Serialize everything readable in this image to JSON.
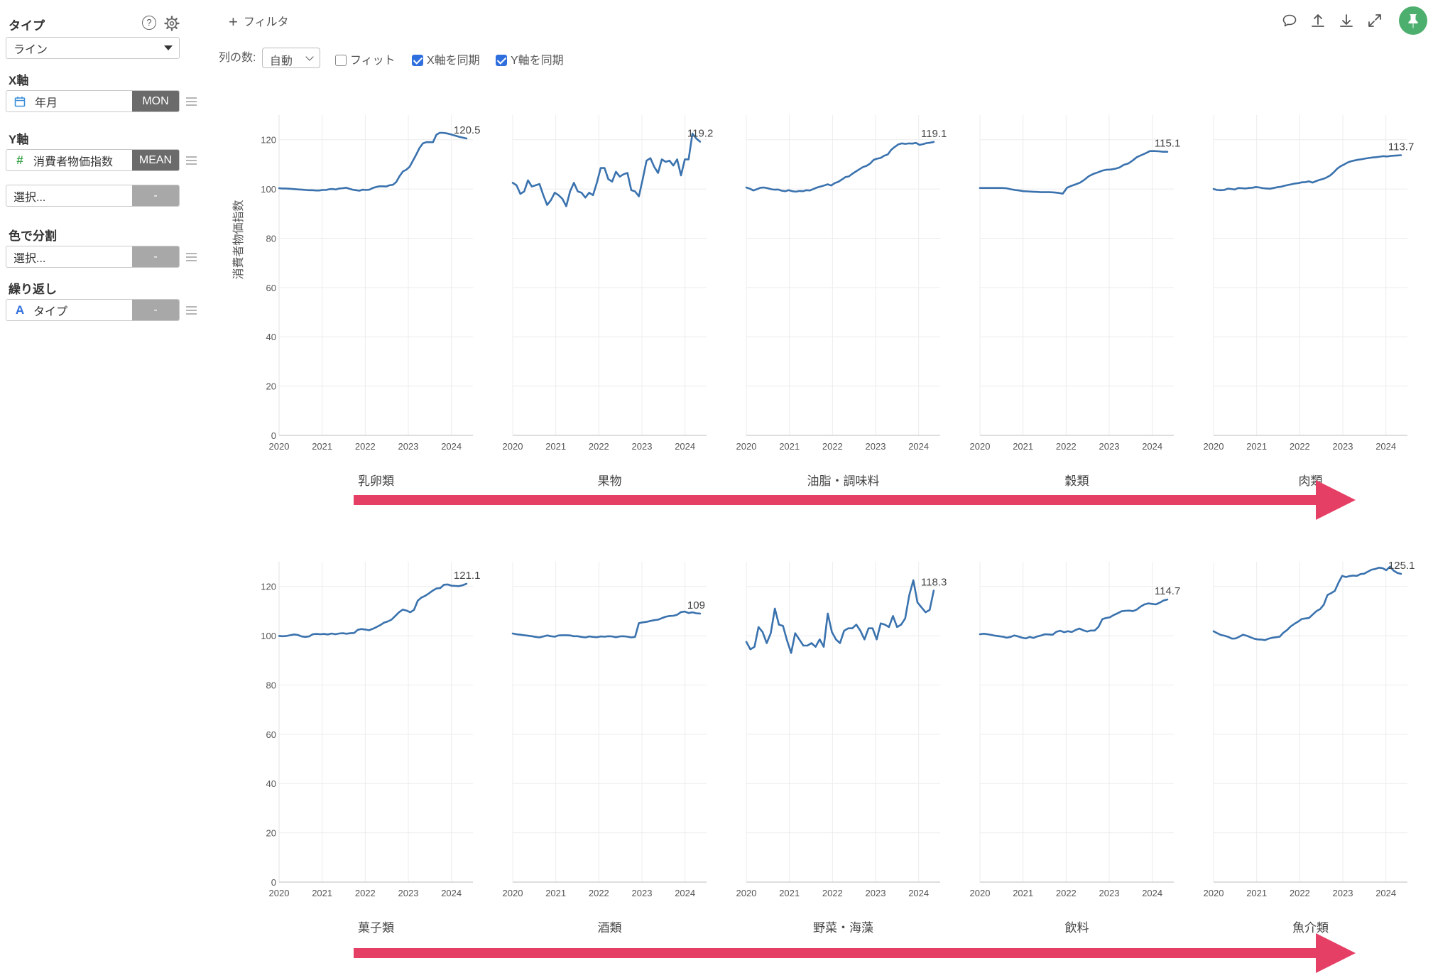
{
  "sidebar": {
    "type_label": "タイプ",
    "type_value": "ライン",
    "x_label": "X軸",
    "x_field": "年月",
    "x_agg": "MON",
    "y_label": "Y軸",
    "y_field": "消費者物価指数",
    "y_agg": "MEAN",
    "y_extra_placeholder": "選択...",
    "y_extra_agg": "-",
    "color_label": "色で分割",
    "color_placeholder": "選択...",
    "color_agg": "-",
    "repeat_label": "繰り返し",
    "repeat_field": "タイプ",
    "repeat_agg": "-",
    "help_glyph": "?",
    "field_type_glyphs": {
      "number": "#",
      "text": "A"
    }
  },
  "toolbar": {
    "filter_label": "フィルタ",
    "cols_label": "列の数:",
    "cols_value": "自動",
    "fit_label": "フィット",
    "fit_checked": false,
    "sync_x_label": "X軸を同期",
    "sync_x_checked": true,
    "sync_y_label": "Y軸を同期",
    "sync_y_checked": true,
    "icons": [
      "comment-icon",
      "upload-icon",
      "download-icon",
      "expand-icon",
      "pin-icon"
    ]
  },
  "colors": {
    "line": "#3a72ae",
    "arrow": "#e63f66",
    "pin": "#4caf6d"
  },
  "chart_data": {
    "type": "line",
    "ylabel": "消費者物価指数",
    "ylim": [
      0,
      130
    ],
    "yticks": [
      0,
      20,
      40,
      60,
      80,
      100,
      120
    ],
    "xlim": [
      2020,
      2024.5
    ],
    "xticks": [
      2020,
      2021,
      2022,
      2023,
      2024
    ],
    "grid": true,
    "facets": [
      {
        "label": "乳卵類",
        "end_label": "120.5",
        "values": [
          100.3,
          100.2,
          100.2,
          100.1,
          100,
          99.9,
          99.8,
          99.7,
          99.6,
          99.5,
          99.5,
          99.4,
          99.4,
          99.6,
          99.6,
          99.9,
          100,
          99.8,
          100.2,
          100.3,
          100.5,
          100.1,
          99.7,
          99.5,
          99.3,
          99.7,
          99.6,
          99.7,
          100.4,
          100.8,
          101.1,
          101.1,
          101,
          101.5,
          101.7,
          102.8,
          105.2,
          107.1,
          107.8,
          109,
          111.5,
          114,
          116.7,
          118.5,
          119,
          119,
          119,
          122,
          122.8,
          122.8,
          122.6,
          122.3,
          121.9,
          121.5,
          121.1,
          120.8,
          120.5
        ]
      },
      {
        "label": "果物",
        "end_label": "119.2",
        "values": [
          102.5,
          101.5,
          98,
          99,
          103.5,
          101,
          101.5,
          102,
          97.5,
          93.5,
          95.5,
          98.5,
          97.5,
          96,
          93,
          99,
          102.5,
          99,
          98.5,
          96.5,
          98.5,
          97.5,
          102.5,
          108.5,
          108.5,
          104,
          103,
          107,
          105,
          106,
          106.5,
          99.5,
          99,
          97,
          104,
          111.5,
          112.5,
          109,
          106.5,
          112,
          111,
          111.5,
          109.5,
          112,
          105.5,
          112,
          112,
          122.5,
          120.5,
          119.2
        ]
      },
      {
        "label": "油脂・調味料",
        "end_label": "119.1",
        "values": [
          100.6,
          100.1,
          99.4,
          99.9,
          100.5,
          100.6,
          100.3,
          99.9,
          99.7,
          99.8,
          99.3,
          99.1,
          99.5,
          99.1,
          98.9,
          99.2,
          99.1,
          99.5,
          99.4,
          100,
          100.6,
          101,
          101.4,
          101.9,
          101.4,
          102.4,
          102.9,
          103.8,
          104.8,
          105.1,
          106.2,
          107.1,
          108,
          108.9,
          109.4,
          110.3,
          111.8,
          112.3,
          112.6,
          113.5,
          114,
          115.9,
          117.1,
          118.1,
          118.5,
          118.3,
          118.5,
          118.4,
          118.7,
          117.9,
          118.2,
          118.6,
          118.8,
          119.1
        ]
      },
      {
        "label": "穀類",
        "end_label": "115.1",
        "values": [
          100.4,
          100.4,
          100.4,
          100.4,
          100.4,
          100.4,
          100.3,
          99.9,
          99.6,
          99.4,
          99.1,
          99,
          98.9,
          98.8,
          98.7,
          98.7,
          98.7,
          98.6,
          98.4,
          98.1,
          100.5,
          101.3,
          101.9,
          102.6,
          103.8,
          105.2,
          106.1,
          106.7,
          107.4,
          107.8,
          107.9,
          108.2,
          108.7,
          109.8,
          110.3,
          111.5,
          112.9,
          113.7,
          114.5,
          115.4,
          115.4,
          115.3,
          115.1,
          115.1
        ]
      },
      {
        "label": "肉類",
        "end_label": "113.7",
        "values": [
          100,
          99.6,
          99.5,
          99.6,
          100.1,
          100,
          99.8,
          100.4,
          100.3,
          100.2,
          100.4,
          100.5,
          100.8,
          100.6,
          100.3,
          100.2,
          100.1,
          100.4,
          100.7,
          100.9,
          101.3,
          101.6,
          101.9,
          102.2,
          102.4,
          102.7,
          102.8,
          103.1,
          102.6,
          103.2,
          103.7,
          104.1,
          104.7,
          105.5,
          106.8,
          108.3,
          109.3,
          110,
          110.8,
          111.3,
          111.6,
          111.9,
          112.1,
          112.4,
          112.6,
          112.8,
          112.9,
          113.1,
          113.3,
          113.2,
          113.4,
          113.5,
          113.6,
          113.7
        ]
      },
      {
        "label": "菓子類",
        "end_label": "121.1",
        "values": [
          99.9,
          99.8,
          99.9,
          100.2,
          100.5,
          100.3,
          99.7,
          99.5,
          99.7,
          100.6,
          100.7,
          100.6,
          100.7,
          100.5,
          100.9,
          100.6,
          100.9,
          101,
          100.8,
          101,
          101.1,
          102.4,
          102.7,
          102.5,
          102.2,
          102.8,
          103.5,
          104.3,
          105.3,
          105.8,
          106.5,
          108,
          109.5,
          110.6,
          110.2,
          109.5,
          110.5,
          114.2,
          115.5,
          116.2,
          117.2,
          118.3,
          119.2,
          119.3,
          120.7,
          120.8,
          120.3,
          120.2,
          120.1,
          120.5,
          121.1
        ]
      },
      {
        "label": "酒類",
        "end_label": "109",
        "values": [
          100.9,
          100.6,
          100.4,
          100.2,
          100,
          99.8,
          99.5,
          99.3,
          99.7,
          100.1,
          99.8,
          99.6,
          100.1,
          100.2,
          100.2,
          100.1,
          99.8,
          99.8,
          99.5,
          99.3,
          99.7,
          99.5,
          99.4,
          99.7,
          99.6,
          99.8,
          99.7,
          99.4,
          99.7,
          99.8,
          99.6,
          99.3,
          99.5,
          105.1,
          105.4,
          105.6,
          106,
          106.3,
          106.5,
          107.1,
          107.7,
          108,
          108.1,
          108.5,
          109.6,
          109.8,
          109.2,
          109.5,
          109.1,
          109
        ]
      },
      {
        "label": "野菜・海藻",
        "end_label": "118.3",
        "values": [
          97.5,
          94.5,
          95.5,
          103.5,
          101.5,
          97,
          101,
          111,
          104.5,
          104,
          98,
          93,
          101,
          98.5,
          96,
          96,
          97,
          95.5,
          98.5,
          95.5,
          109,
          101.5,
          98.5,
          97,
          102,
          103,
          103,
          104.5,
          102,
          98.5,
          103,
          103,
          98.5,
          105,
          104.5,
          103.5,
          108,
          103.5,
          104.5,
          107,
          116.5,
          122.5,
          113.5,
          111.5,
          109.5,
          110.5,
          118.3
        ]
      },
      {
        "label": "飲料",
        "end_label": "114.7",
        "values": [
          100.6,
          100.8,
          100.6,
          100.3,
          100,
          99.8,
          99.6,
          99.2,
          99.5,
          100.1,
          99.7,
          99.2,
          98.9,
          99.5,
          99.1,
          99.7,
          100.1,
          100.6,
          100.5,
          100.4,
          101.6,
          102,
          101.4,
          101.8,
          101.5,
          102.3,
          102.9,
          102.2,
          101.7,
          102.1,
          102.1,
          103.6,
          106.7,
          107.2,
          107.5,
          108.4,
          109.1,
          109.9,
          110.1,
          110.2,
          110,
          110.6,
          111.8,
          112.7,
          113.1,
          112.9,
          112.7,
          113.4,
          114.3,
          114.7
        ]
      },
      {
        "label": "魚介類",
        "end_label": "125.1",
        "values": [
          101.8,
          101,
          100.3,
          100,
          99.5,
          98.8,
          98.9,
          99.6,
          100.4,
          100,
          99.4,
          98.8,
          98.5,
          98.4,
          98.2,
          98.8,
          99.2,
          99.4,
          99.6,
          101.2,
          102.3,
          103.8,
          104.8,
          105.7,
          106.8,
          107,
          107.2,
          108.6,
          110,
          110.8,
          112.6,
          116.5,
          117.3,
          118.2,
          121.5,
          124.3,
          123.8,
          124.2,
          124.4,
          124.3,
          125,
          125.2,
          126,
          126.8,
          127.1,
          127.6,
          127.4,
          126.6,
          128,
          126.4,
          125.5,
          125.1
        ]
      }
    ]
  }
}
